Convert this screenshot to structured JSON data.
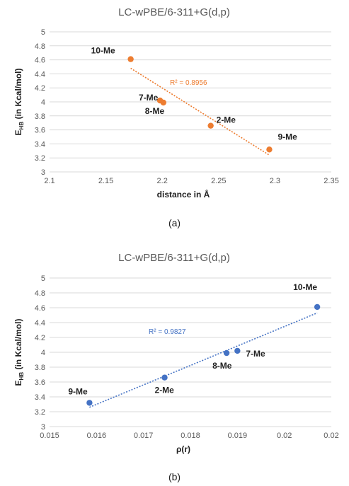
{
  "chart_data": [
    {
      "type": "scatter",
      "title": "LC-wPBE/6-311+G(d,p)",
      "xlabel": "distance in Å",
      "ylabel_main": "E",
      "ylabel_sub": "HB",
      "ylabel_rest": " (in Kcal/mol)",
      "xlim": [
        2.1,
        2.35
      ],
      "ylim": [
        3,
        5
      ],
      "xticks": [
        2.1,
        2.15,
        2.2,
        2.25,
        2.3,
        2.35
      ],
      "xtick_labels": [
        "2.1",
        "2.15",
        "2.2",
        "2.25",
        "2.3",
        "2.35"
      ],
      "yticks": [
        3,
        3.2,
        3.4,
        3.6,
        3.8,
        4,
        4.2,
        4.4,
        4.6,
        4.8,
        5
      ],
      "ytick_labels": [
        "3",
        "3.2",
        "3.4",
        "3.6",
        "3.8",
        "4",
        "4.2",
        "4.4",
        "4.6",
        "4.8",
        "5"
      ],
      "grid": "horizontal",
      "color": "#ED7D31",
      "points": [
        {
          "label": "10-Me",
          "x": 2.172,
          "y": 4.61
        },
        {
          "label": "7-Me",
          "x": 2.198,
          "y": 4.02
        },
        {
          "label": "8-Me",
          "x": 2.201,
          "y": 3.99
        },
        {
          "label": "2-Me",
          "x": 2.243,
          "y": 3.66
        },
        {
          "label": "9-Me",
          "x": 2.295,
          "y": 3.32
        }
      ],
      "trendline": {
        "type": "linear",
        "x": [
          2.172,
          2.295
        ],
        "y": [
          4.48,
          3.24
        ]
      },
      "r2_label": "R² = 0.8956"
    },
    {
      "type": "scatter",
      "title": "LC-wPBE/6-311+G(d,p)",
      "xlabel": "ρ(r)",
      "ylabel_main": "E",
      "ylabel_sub": "HB",
      "ylabel_rest": " (in Kcal/mol)",
      "xlim": [
        0.015,
        0.021
      ],
      "ylim": [
        3,
        5
      ],
      "xticks": [
        0.015,
        0.016,
        0.017,
        0.018,
        0.019,
        0.02,
        0.021
      ],
      "xtick_labels": [
        "0.015",
        "0.016",
        "0.017",
        "0.018",
        "0.019",
        "0.02",
        "0.02"
      ],
      "yticks": [
        3,
        3.2,
        3.4,
        3.6,
        3.8,
        4,
        4.2,
        4.4,
        4.6,
        4.8,
        5
      ],
      "ytick_labels": [
        "3",
        "3.2",
        "3.4",
        "3.6",
        "3.8",
        "4",
        "4.2",
        "4.4",
        "4.6",
        "4.8",
        "5"
      ],
      "grid": "horizontal",
      "color": "#4472C4",
      "points": [
        {
          "label": "9-Me",
          "x": 0.01585,
          "y": 3.32
        },
        {
          "label": "2-Me",
          "x": 0.01745,
          "y": 3.66
        },
        {
          "label": "8-Me",
          "x": 0.01877,
          "y": 3.99
        },
        {
          "label": "7-Me",
          "x": 0.019,
          "y": 4.02
        },
        {
          "label": "10-Me",
          "x": 0.0207,
          "y": 4.61
        }
      ],
      "trendline": {
        "type": "linear",
        "x": [
          0.01585,
          0.0207
        ],
        "y": [
          3.26,
          4.53
        ]
      },
      "r2_label": "R² = 0.9827"
    }
  ],
  "captions": {
    "a": "(a)",
    "b": "(b)"
  }
}
